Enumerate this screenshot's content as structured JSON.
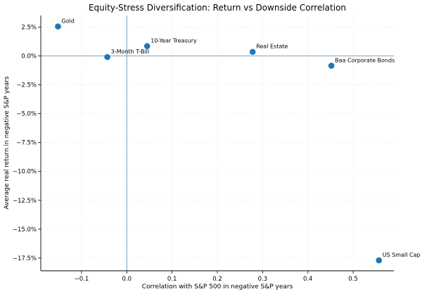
{
  "chart_data": {
    "type": "scatter",
    "title": "Equity-Stress Diversification: Return vs Downside Correlation",
    "xlabel": "Correlation with S&P 500 in negative S&P years",
    "ylabel": "Average real return in negative S&P years",
    "xlim": [
      -0.19,
      0.59
    ],
    "ylim": [
      -18.6,
      3.5
    ],
    "xticks": [
      -0.1,
      0.0,
      0.1,
      0.2,
      0.3,
      0.4,
      0.5
    ],
    "xtick_labels": [
      "−0.1",
      "0.0",
      "0.1",
      "0.2",
      "0.3",
      "0.4",
      "0.5"
    ],
    "yticks": [
      2.5,
      0.0,
      -2.5,
      -5.0,
      -7.5,
      -10.0,
      -12.5,
      -15.0,
      -17.5
    ],
    "ytick_labels": [
      "2.5%",
      "0.0%",
      "−2.5%",
      "−5.0%",
      "−7.5%",
      "−10.0%",
      "−12.5%",
      "−15.0%",
      "−17.5%"
    ],
    "reference_lines": {
      "x": 0.0,
      "y": 0.0
    },
    "grid": true,
    "marker_color": "#1f77b4",
    "reference_line_color": "#7aa6c8",
    "points": [
      {
        "label": "Gold",
        "x": -0.152,
        "y": 2.55
      },
      {
        "label": "10-Year Treasury",
        "x": 0.045,
        "y": 0.85
      },
      {
        "label": "3-Month T-Bill",
        "x": -0.043,
        "y": -0.1
      },
      {
        "label": "Real Estate",
        "x": 0.278,
        "y": 0.35
      },
      {
        "label": "Baa Corporate Bonds",
        "x": 0.452,
        "y": -0.85
      },
      {
        "label": "US Small Cap",
        "x": 0.557,
        "y": -17.7
      }
    ]
  }
}
